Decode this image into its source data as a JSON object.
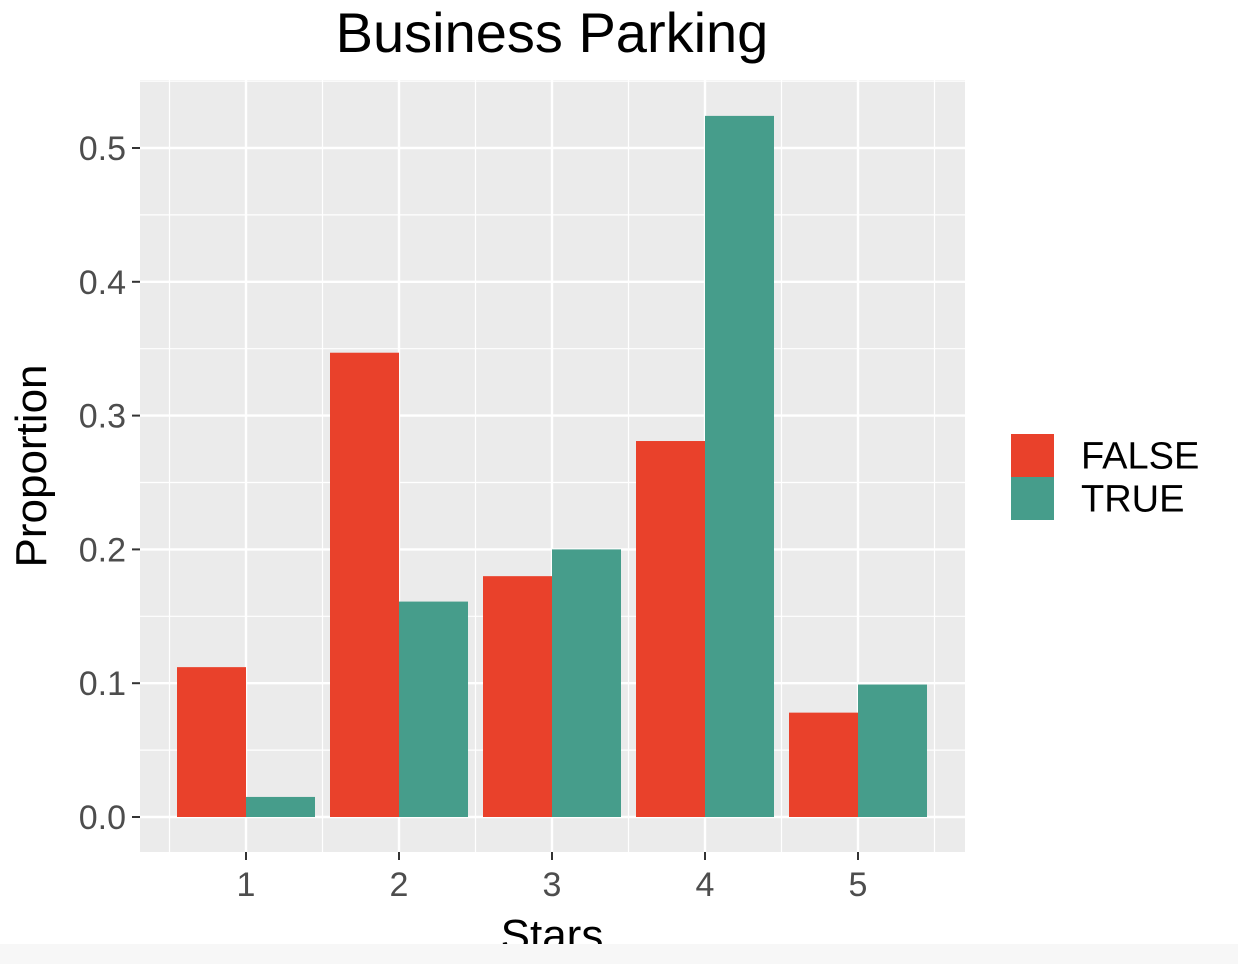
{
  "chart_data": {
    "type": "bar",
    "title": "Business Parking",
    "xlabel": "Stars",
    "ylabel": "Proportion",
    "categories": [
      "1",
      "2",
      "3",
      "4",
      "5"
    ],
    "y_ticks": [
      "0.0",
      "0.1",
      "0.2",
      "0.3",
      "0.4",
      "0.5"
    ],
    "ylim": [
      -0.05,
      0.55
    ],
    "grid": true,
    "legend_position": "right",
    "series": [
      {
        "name": "FALSE",
        "color": "#e9412b",
        "values": [
          0.112,
          0.347,
          0.18,
          0.281,
          0.078
        ]
      },
      {
        "name": "TRUE",
        "color": "#469d8b",
        "values": [
          0.015,
          0.161,
          0.2,
          0.524,
          0.099
        ]
      }
    ],
    "panel_background": "#ebebeb",
    "gridline_color": "#ffffff"
  }
}
